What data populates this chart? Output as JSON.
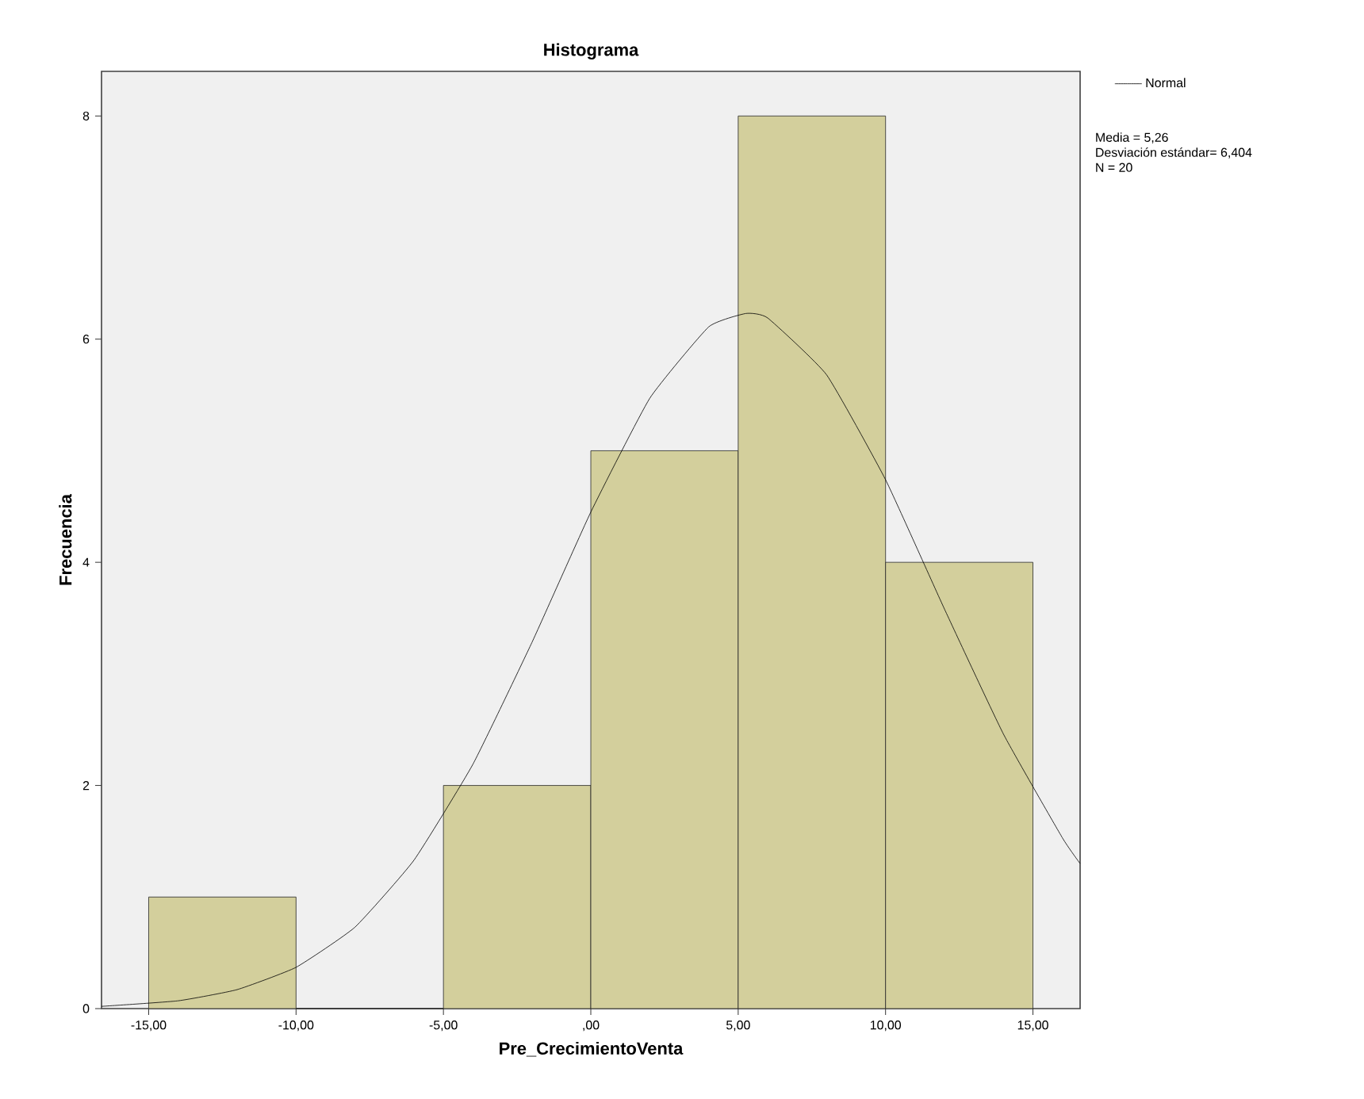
{
  "chart_data": {
    "type": "histogram",
    "title": "Histograma",
    "xlabel": "Pre_CrecimientoVenta",
    "ylabel": "Frecuencia",
    "bins": [
      -15,
      -10,
      -5,
      0,
      5,
      10,
      15
    ],
    "values": [
      1,
      0,
      2,
      5,
      8,
      4
    ],
    "color": "#d3cf9c",
    "series": [
      {
        "type": "line",
        "name": "Normal",
        "color": "#000000",
        "x": [
          -16.6,
          -14,
          -12,
          -10,
          -8,
          -6,
          -4,
          -2,
          0,
          2,
          4,
          5.26,
          6,
          8,
          10,
          12,
          14,
          16,
          16.6
        ],
        "values": [
          0.02,
          0.07,
          0.17,
          0.37,
          0.73,
          1.33,
          2.19,
          3.28,
          4.45,
          5.47,
          6.11,
          6.23,
          6.19,
          5.68,
          4.74,
          3.58,
          2.46,
          1.53,
          1.3
        ]
      }
    ],
    "xlim": [
      -16.6,
      16.6
    ],
    "ylim": [
      0,
      8.4
    ],
    "xticks": [
      {
        "value": -15,
        "label": "-15,00"
      },
      {
        "value": -10,
        "label": "-10,00"
      },
      {
        "value": -5,
        "label": "-5,00"
      },
      {
        "value": 0,
        "label": ",00"
      },
      {
        "value": 5,
        "label": "5,00"
      },
      {
        "value": 10,
        "label": "10,00"
      },
      {
        "value": 15,
        "label": "15,00"
      }
    ],
    "yticks": [
      0,
      2,
      4,
      6,
      8
    ],
    "legend": "top right",
    "marker": "none",
    "line_style": "solid",
    "annotations": [
      "Media = 5,26",
      "Desviación estándar= 6,404",
      "N = 20"
    ]
  }
}
